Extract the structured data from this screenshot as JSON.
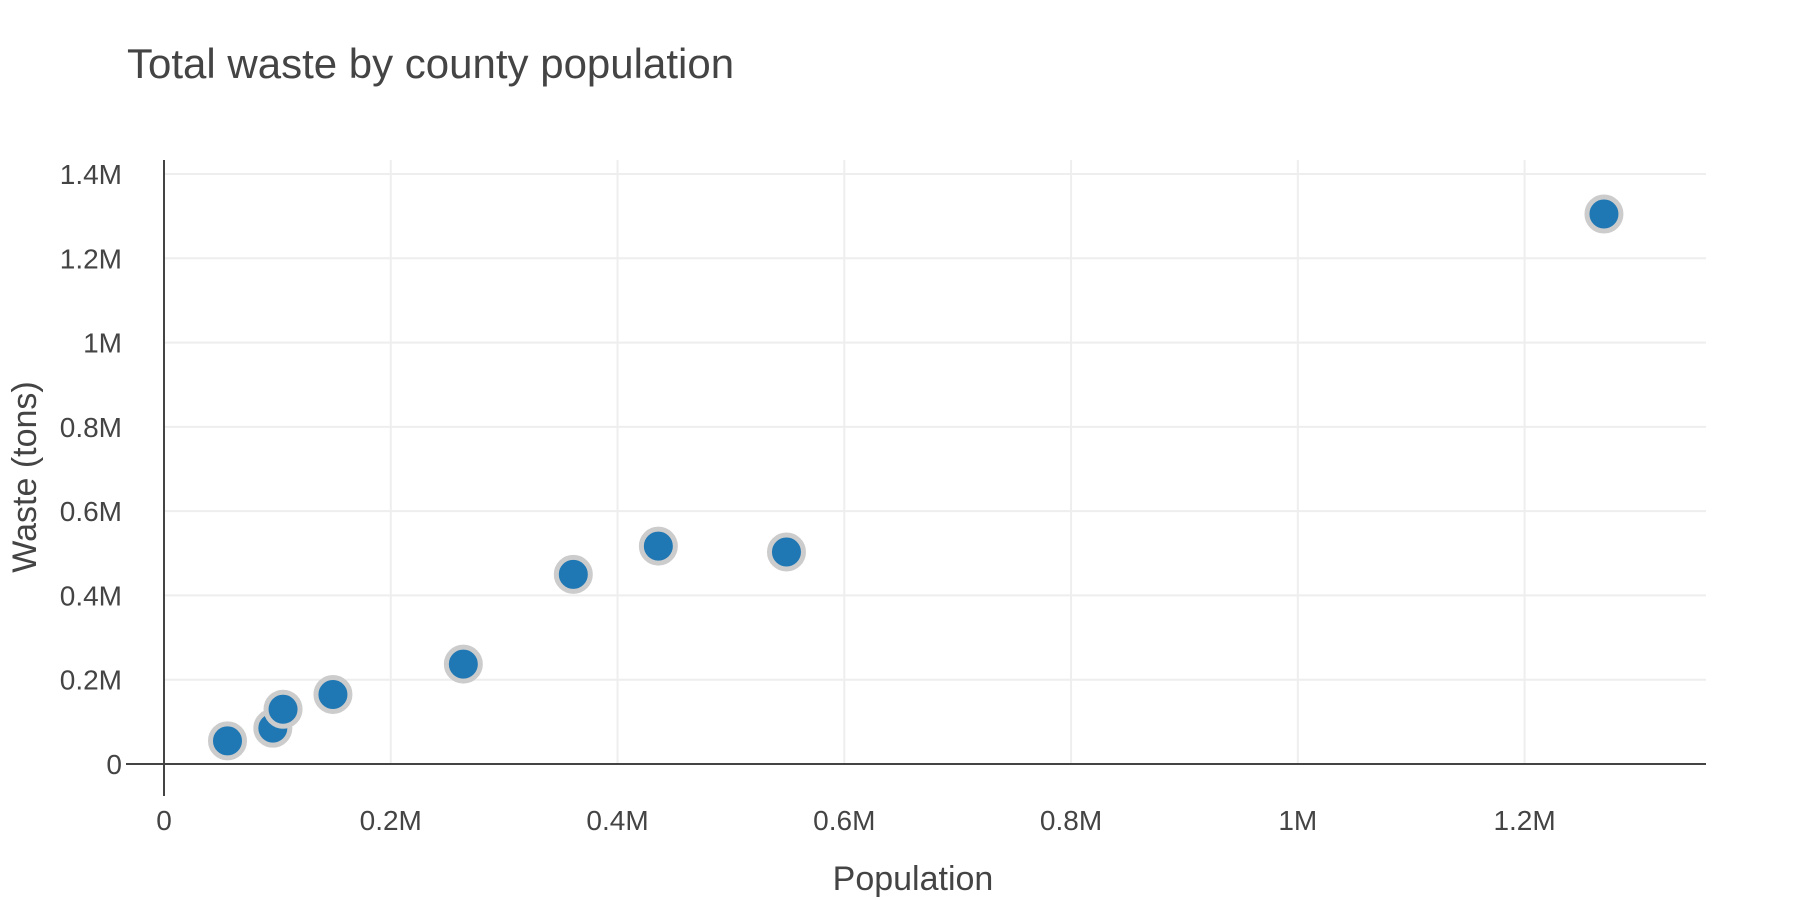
{
  "chart_data": {
    "type": "scatter",
    "title": "Total waste by county population",
    "xlabel": "Population",
    "ylabel": "Waste (tons)",
    "xlim": [
      0,
      1360000
    ],
    "ylim": [
      0,
      1400000
    ],
    "x_ticks": [
      {
        "value": 0,
        "label": "0"
      },
      {
        "value": 200000,
        "label": "0.2M"
      },
      {
        "value": 400000,
        "label": "0.4M"
      },
      {
        "value": 600000,
        "label": "0.6M"
      },
      {
        "value": 800000,
        "label": "0.8M"
      },
      {
        "value": 1000000,
        "label": "1M"
      },
      {
        "value": 1200000,
        "label": "1.2M"
      }
    ],
    "y_ticks": [
      {
        "value": 0,
        "label": "0"
      },
      {
        "value": 200000,
        "label": "0.2M"
      },
      {
        "value": 400000,
        "label": "0.4M"
      },
      {
        "value": 600000,
        "label": "0.6M"
      },
      {
        "value": 800000,
        "label": "0.8M"
      },
      {
        "value": 1000000,
        "label": "1M"
      },
      {
        "value": 1200000,
        "label": "1.2M"
      },
      {
        "value": 1400000,
        "label": "1.4M"
      }
    ],
    "grid": true,
    "legend": false,
    "points": [
      {
        "x": 56000,
        "y": 55000
      },
      {
        "x": 96000,
        "y": 85000
      },
      {
        "x": 105000,
        "y": 130000
      },
      {
        "x": 149000,
        "y": 165000
      },
      {
        "x": 264000,
        "y": 237000
      },
      {
        "x": 361000,
        "y": 450000
      },
      {
        "x": 436000,
        "y": 517000
      },
      {
        "x": 549000,
        "y": 503000
      },
      {
        "x": 1270000,
        "y": 1305000
      }
    ],
    "colors": {
      "marker_fill": "#1f77b4",
      "marker_outline": "#cccccc"
    }
  }
}
